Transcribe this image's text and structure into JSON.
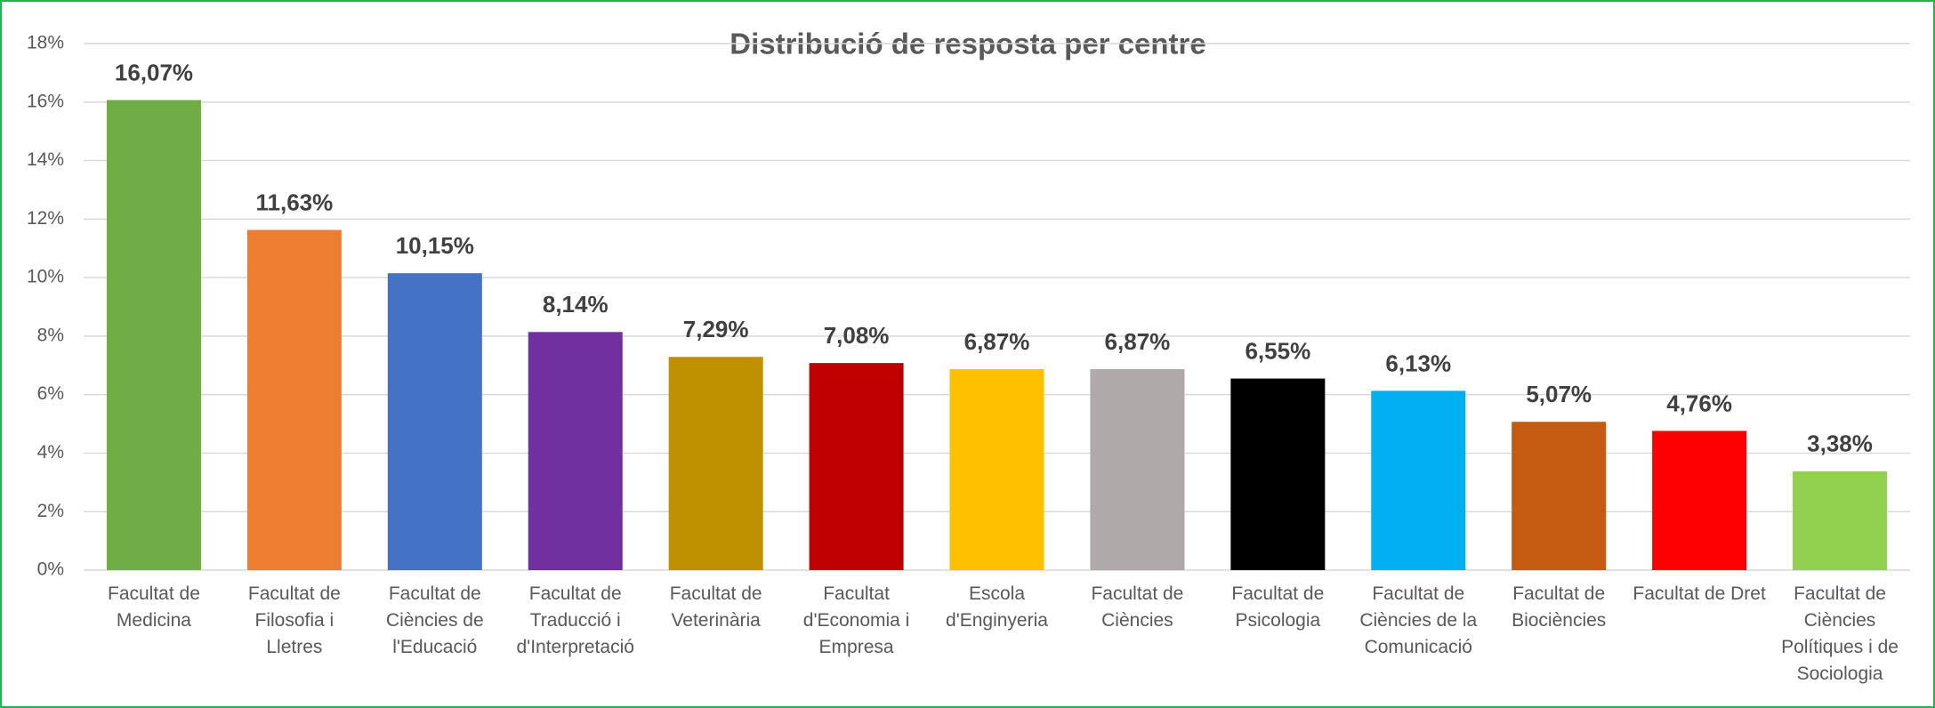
{
  "chart_data": {
    "type": "bar",
    "title": "Distribució de resposta per centre",
    "categories": [
      "Facultat de Medicina",
      "Facultat de Filosofia i Lletres",
      "Facultat de Ciències de l'Educació",
      "Facultat de Traducció i d'Interpretació",
      "Facultat de Veterinària",
      "Facultat d'Economia i Empresa",
      "Escola d'Enginyeria",
      "Facultat de Ciències",
      "Facultat de Psicologia",
      "Facultat de Ciències de la Comunicació",
      "Facultat de Biociències",
      "Facultat de Dret",
      "Facultat de Ciències Polítiques i de Sociologia"
    ],
    "values": [
      16.07,
      11.63,
      10.15,
      8.14,
      7.29,
      7.08,
      6.87,
      6.87,
      6.55,
      6.13,
      5.07,
      4.76,
      3.38
    ],
    "value_labels": [
      "16,07%",
      "11,63%",
      "10,15%",
      "8,14%",
      "7,29%",
      "7,08%",
      "6,87%",
      "6,87%",
      "6,55%",
      "6,13%",
      "5,07%",
      "4,76%",
      "3,38%"
    ],
    "colors": [
      "#70ad47",
      "#ed7d31",
      "#4472c4",
      "#7030a0",
      "#bf9000",
      "#c00000",
      "#ffc000",
      "#aeaaaa",
      "#000000",
      "#00b0f0",
      "#c55a11",
      "#ff0000",
      "#92d050"
    ],
    "ylim": [
      0,
      18
    ],
    "yticks": [
      {
        "value": 0,
        "label": "0%"
      },
      {
        "value": 2,
        "label": "2%"
      },
      {
        "value": 4,
        "label": "4%"
      },
      {
        "value": 6,
        "label": "6%"
      },
      {
        "value": 8,
        "label": "8%"
      },
      {
        "value": 10,
        "label": "10%"
      },
      {
        "value": 12,
        "label": "12%"
      },
      {
        "value": 14,
        "label": "14%"
      },
      {
        "value": 16,
        "label": "16%"
      },
      {
        "value": 18,
        "label": "18%"
      }
    ],
    "grid": true
  }
}
